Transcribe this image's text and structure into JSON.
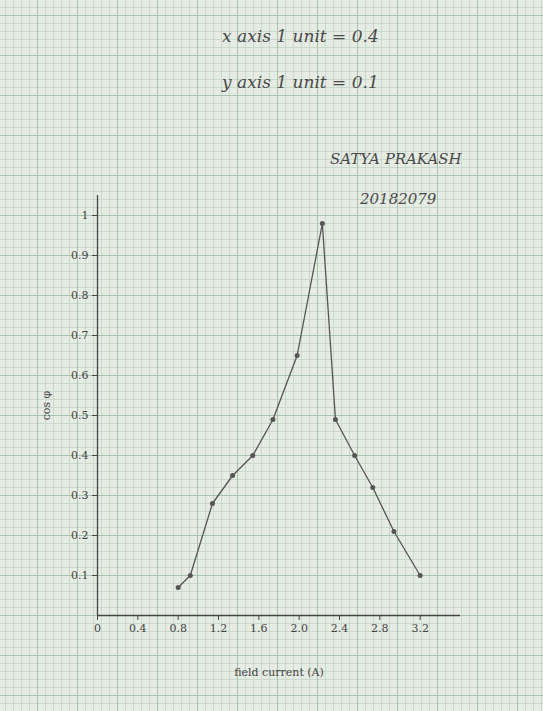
{
  "chart_data": {
    "type": "line",
    "annotations": [
      "x axis 1 unit = 0.4",
      "y axis 1 unit = 0.1",
      "SATYA PRAKASH",
      "20182079"
    ],
    "x_label": "field current (A)",
    "y_label": "cos φ",
    "x": [
      0.8,
      0.92,
      1.14,
      1.34,
      1.54,
      1.74,
      1.98,
      2.23,
      2.36,
      2.55,
      2.73,
      2.94,
      3.2
    ],
    "values": [
      0.07,
      0.1,
      0.28,
      0.35,
      0.4,
      0.49,
      0.65,
      0.98,
      0.49,
      0.4,
      0.32,
      0.21,
      0.1
    ],
    "color": "#555555",
    "marker": "dot",
    "xlim": [
      0,
      3.6
    ],
    "ylim": [
      0,
      1.05
    ],
    "xticks": [
      0,
      0.4,
      0.8,
      1.2,
      1.6,
      {
        "value": 2,
        "label": "2.0"
      },
      2.4,
      2.8,
      3.2
    ],
    "yticks": [
      0.1,
      0.2,
      0.3,
      0.4,
      0.5,
      0.6,
      0.7,
      0.8,
      0.9,
      1
    ],
    "grid": false
  }
}
